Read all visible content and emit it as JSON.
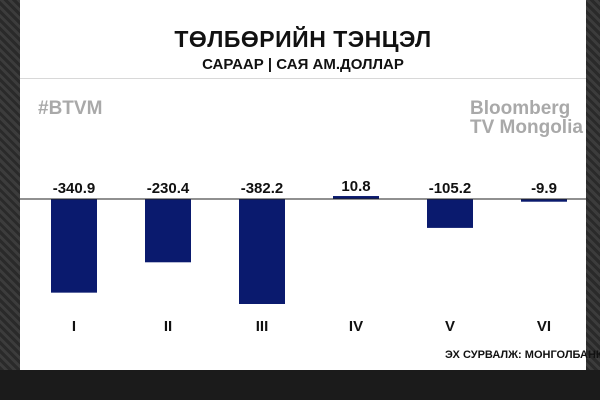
{
  "header": {
    "title": "ТӨЛБӨРИЙН ТЭНЦЭЛ",
    "subtitle": "САРААР | САЯ АМ.ДОЛЛАР"
  },
  "watermarks": {
    "hashtag": "#BTVM",
    "logo_line1": "Bloomberg",
    "logo_line2": "TV Mongolia"
  },
  "footer": {
    "source": "ЭХ СУРВАЛЖ: МОНГОЛБАНК"
  },
  "colors": {
    "bar": "#0a1a6e",
    "text": "#111111",
    "watermark": "#a9a9a9"
  },
  "chart_data": {
    "type": "bar",
    "title": "ТӨЛБӨРИЙН ТЭНЦЭЛ",
    "subtitle": "САРААР | САЯ АМ.ДОЛЛАР",
    "categories": [
      "I",
      "II",
      "III",
      "IV",
      "V",
      "VI"
    ],
    "values": [
      -340.9,
      -230.4,
      -382.2,
      10.8,
      -105.2,
      -9.9
    ],
    "data_labels": [
      "-340.9",
      "-230.4",
      "-382.2",
      "10.8",
      "-105.2",
      "-9.9"
    ],
    "xlabel": "",
    "ylabel": "",
    "grid": false
  }
}
